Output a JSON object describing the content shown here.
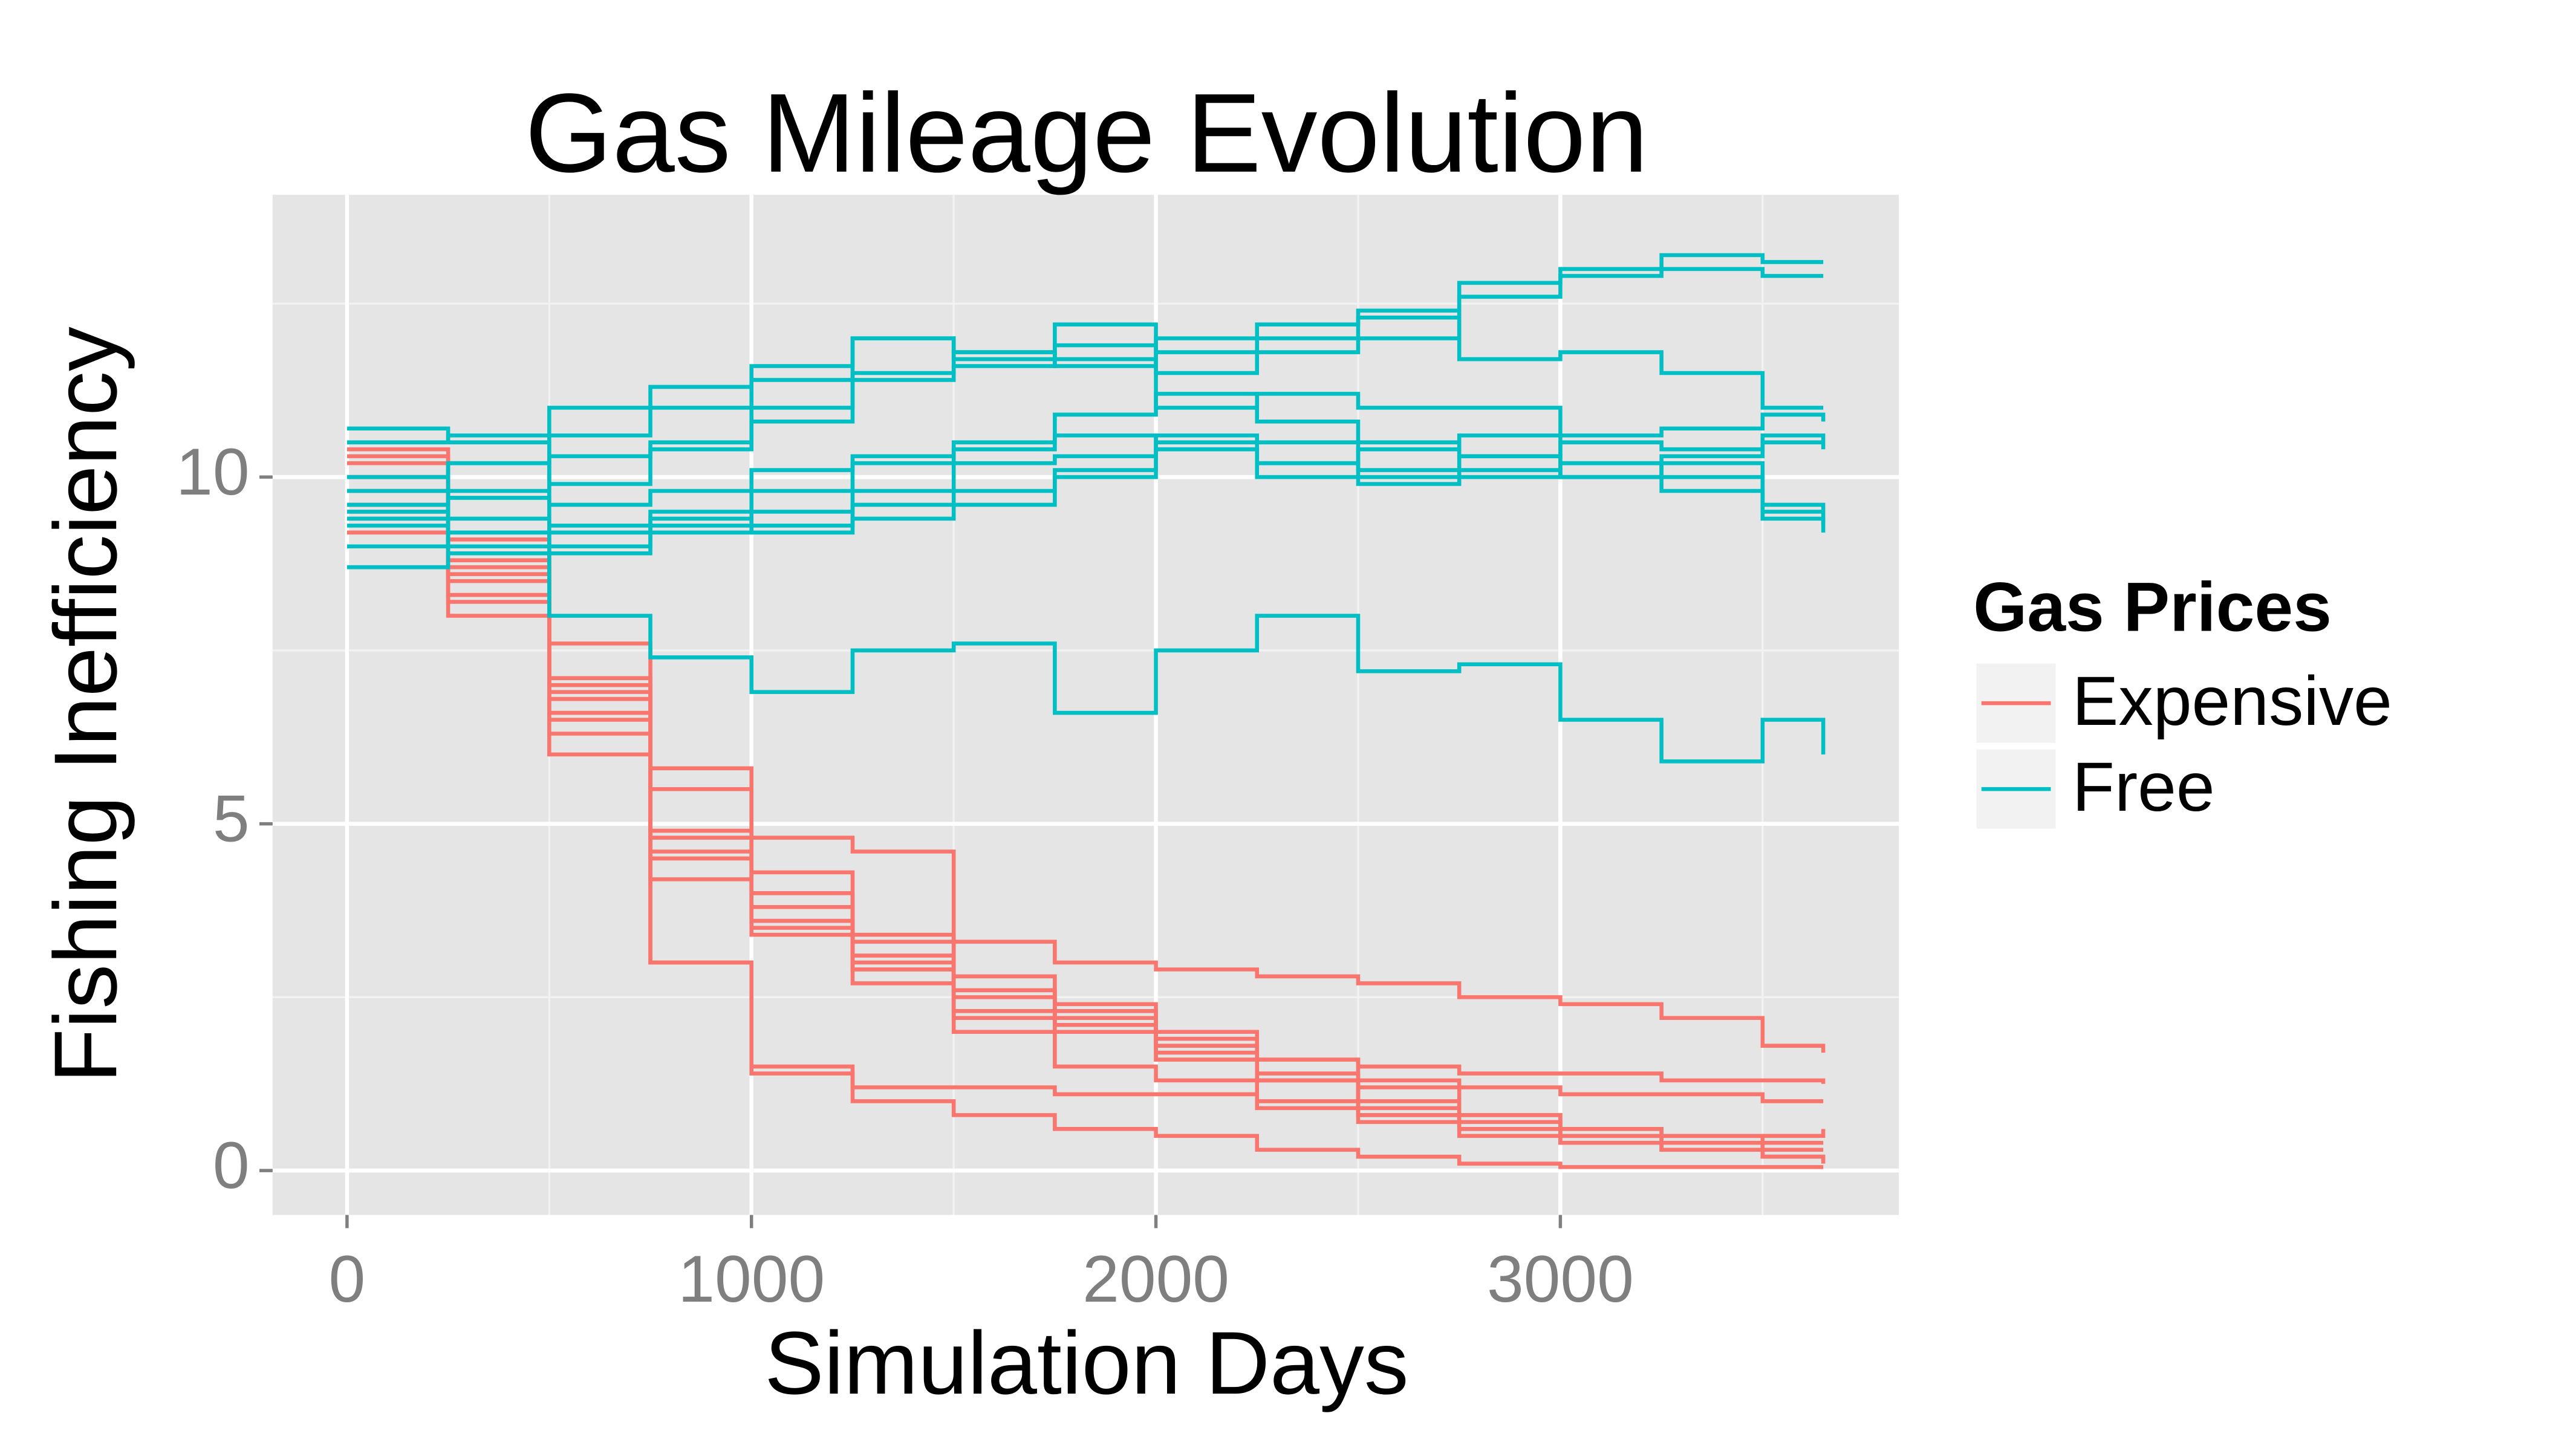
{
  "chart_data": {
    "type": "line",
    "step": true,
    "title": "Gas Mileage Evolution",
    "x_label": "Simulation Days",
    "y_label": "Fishing Inefficiency",
    "legend_title": "Gas Prices",
    "legend_position": "right",
    "grid": true,
    "xlim": [
      -184,
      3837
    ],
    "ylim": [
      -0.64,
      14.07
    ],
    "xticks": [
      0,
      1000,
      2000,
      3000
    ],
    "yticks": [
      0,
      5,
      10
    ],
    "x": [
      0,
      250,
      500,
      750,
      1000,
      1250,
      1500,
      1750,
      2000,
      2250,
      2500,
      2750,
      3000,
      3250,
      3500,
      3650
    ],
    "series": [
      {
        "name": "Expensive",
        "color": "#F8766D",
        "runs": [
          [
            10.3,
            9.0,
            7.6,
            5.8,
            4.8,
            4.6,
            3.3,
            3.0,
            2.9,
            2.8,
            2.7,
            2.5,
            2.4,
            2.2,
            1.8,
            1.7
          ],
          [
            10.0,
            8.7,
            6.8,
            5.5,
            4.0,
            3.3,
            2.8,
            2.4,
            2.0,
            1.6,
            1.5,
            1.4,
            1.4,
            1.3,
            1.3,
            1.25
          ],
          [
            9.6,
            8.5,
            6.6,
            4.8,
            3.6,
            3.0,
            2.6,
            2.3,
            1.9,
            1.6,
            1.3,
            1.2,
            1.1,
            1.1,
            1.0,
            1.0
          ],
          [
            10.4,
            8.9,
            7.0,
            4.9,
            3.8,
            3.1,
            2.5,
            2.2,
            1.7,
            1.3,
            1.0,
            0.8,
            0.6,
            0.5,
            0.5,
            0.6
          ],
          [
            9.8,
            8.3,
            6.5,
            4.5,
            3.4,
            2.9,
            2.3,
            2.1,
            1.8,
            1.4,
            1.2,
            0.8,
            0.6,
            0.5,
            0.4,
            0.4
          ],
          [
            9.5,
            8.0,
            6.0,
            4.2,
            3.5,
            2.7,
            2.2,
            2.0,
            1.6,
            1.3,
            0.9,
            0.7,
            0.5,
            0.4,
            0.3,
            0.3
          ],
          [
            10.0,
            8.8,
            7.1,
            5.5,
            4.3,
            3.4,
            2.6,
            2.1,
            1.6,
            1.3,
            0.8,
            0.6,
            0.5,
            0.3,
            0.2,
            0.2
          ],
          [
            9.2,
            8.2,
            6.3,
            3.0,
            1.5,
            1.2,
            1.2,
            1.1,
            1.1,
            0.9,
            0.7,
            0.5,
            0.4,
            0.3,
            0.2,
            0.15
          ],
          [
            9.4,
            8.6,
            6.8,
            4.6,
            3.6,
            2.9,
            2.0,
            1.5,
            1.3,
            1.0,
            0.8,
            0.6,
            0.4,
            0.3,
            0.2,
            0.1
          ],
          [
            10.2,
            9.1,
            6.9,
            3.0,
            1.4,
            1.0,
            0.8,
            0.6,
            0.5,
            0.3,
            0.2,
            0.1,
            0.05,
            0.05,
            0.05,
            0.05
          ]
        ]
      },
      {
        "name": "Free",
        "color": "#00BFC4",
        "runs": [
          [
            10.5,
            10.6,
            11.0,
            11.3,
            11.4,
            11.5,
            11.6,
            11.9,
            11.8,
            12.2,
            12.3,
            12.8,
            13.0,
            13.2,
            13.1,
            13.1
          ],
          [
            10.0,
            10.2,
            10.6,
            11.0,
            11.6,
            12.0,
            11.8,
            11.7,
            11.5,
            12.0,
            12.0,
            12.6,
            12.9,
            13.0,
            12.9,
            12.9
          ],
          [
            9.5,
            9.8,
            10.3,
            10.5,
            10.8,
            11.4,
            11.8,
            11.6,
            12.0,
            11.8,
            12.4,
            11.7,
            11.8,
            11.5,
            11.0,
            11.0
          ],
          [
            10.7,
            10.5,
            9.9,
            10.4,
            11.0,
            12.0,
            11.7,
            12.2,
            11.0,
            11.2,
            11.0,
            11.0,
            10.6,
            10.7,
            10.9,
            10.8
          ],
          [
            9.8,
            10.2,
            9.6,
            9.8,
            10.1,
            10.3,
            10.5,
            10.9,
            11.2,
            10.8,
            10.5,
            10.3,
            10.5,
            10.4,
            10.5,
            10.5
          ],
          [
            9.4,
            9.7,
            9.3,
            9.5,
            9.8,
            10.2,
            10.4,
            10.6,
            10.4,
            10.2,
            10.4,
            10.6,
            10.0,
            10.3,
            10.6,
            10.4
          ],
          [
            9.0,
            9.4,
            9.0,
            9.2,
            9.5,
            9.8,
            10.2,
            10.3,
            10.4,
            10.2,
            10.0,
            10.3,
            10.2,
            10.0,
            9.6,
            9.5
          ],
          [
            9.3,
            9.0,
            9.2,
            9.3,
            9.3,
            9.6,
            9.8,
            10.1,
            10.6,
            10.5,
            10.1,
            10.0,
            10.2,
            9.8,
            9.4,
            9.3
          ],
          [
            8.7,
            9.2,
            8.9,
            9.4,
            9.2,
            9.4,
            9.6,
            10.0,
            10.5,
            10.0,
            9.9,
            10.1,
            10.0,
            10.2,
            9.5,
            9.2
          ],
          [
            9.6,
            8.9,
            8.0,
            7.4,
            6.9,
            7.5,
            7.6,
            6.6,
            7.5,
            8.0,
            7.2,
            7.3,
            6.5,
            5.9,
            6.5,
            6.0
          ]
        ]
      }
    ]
  }
}
